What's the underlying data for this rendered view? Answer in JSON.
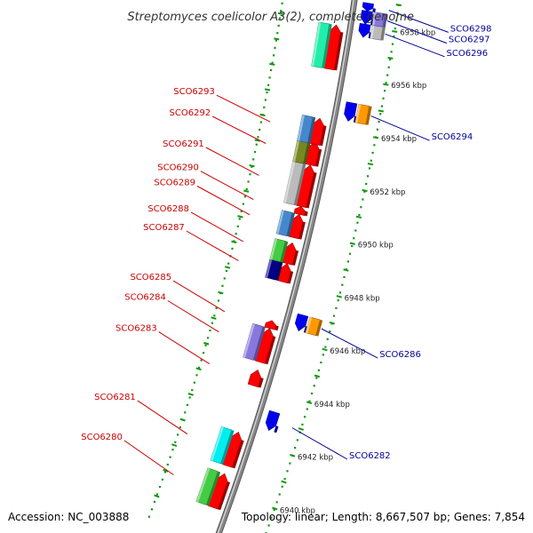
{
  "title": "Streptomyces coelicolor A3(2), complete genome",
  "footer": {
    "accession": "Accession: NC_003888",
    "summary": "Topology: linear; Length: 8,667,507 bp; Genes: 7,854"
  },
  "colors": {
    "forward_label": "#cc0000",
    "reverse_label": "#000099",
    "backbone": "#888888",
    "tick": "#119911"
  },
  "chart_data": {
    "type": "genome-map",
    "kbp_range": [
      6939.3,
      6958.9
    ],
    "kbp_labels": [
      "6940 kbp",
      "6942 kbp",
      "6944 kbp",
      "6946 kbp",
      "6948 kbp",
      "6950 kbp",
      "6952 kbp",
      "6954 kbp",
      "6956 kbp",
      "6958 kbp"
    ],
    "forward_genes": [
      {
        "label": "SCO6280",
        "kbp_start": 6939.3,
        "kbp_end": 6940.6,
        "cog_color": "#44cc44"
      },
      {
        "label": "SCO6281",
        "kbp_start": 6940.9,
        "kbp_end": 6942.2,
        "cog_color": "#00eeee"
      },
      {
        "label": "SCO6283",
        "kbp_start": 6944.0,
        "kbp_end": 6944.6,
        "cog_color": ""
      },
      {
        "label": "SCO6284",
        "kbp_start": 6944.9,
        "kbp_end": 6946.2,
        "cog_color": "#8877dd"
      },
      {
        "label": "SCO6285",
        "kbp_start": 6946.2,
        "kbp_end": 6946.5,
        "cog_color": ""
      },
      {
        "label": "SCO6287",
        "kbp_start": 6948.0,
        "kbp_end": 6948.7,
        "cog_color": "#000088"
      },
      {
        "label": "SCO6288",
        "kbp_start": 6948.7,
        "kbp_end": 6949.5,
        "cog_color": "#44cc44"
      },
      {
        "label": "SCO6289",
        "kbp_start": 6949.7,
        "kbp_end": 6950.6,
        "cog_color": "#4488cc"
      },
      {
        "label": "SCO6290",
        "kbp_start": 6950.6,
        "kbp_end": 6950.9,
        "cog_color": ""
      },
      {
        "label": "SCO6291",
        "kbp_start": 6950.9,
        "kbp_end": 6952.5,
        "cog_color": "#bbbbbb"
      },
      {
        "label": "SCO6292",
        "kbp_start": 6952.5,
        "kbp_end": 6953.4,
        "cog_color": "#778822"
      },
      {
        "label": "SCO6293",
        "kbp_start": 6953.3,
        "kbp_end": 6954.3,
        "cog_color": "#4488cc"
      },
      {
        "label": "",
        "kbp_start": 6956.2,
        "kbp_end": 6957.9,
        "cog_color": "#22eeaa"
      }
    ],
    "reverse_genes": [
      {
        "label": "SCO6282",
        "kbp_start": 6942.6,
        "kbp_end": 6943.3,
        "cog_color": ""
      },
      {
        "label": "SCO6286",
        "kbp_start": 6946.4,
        "kbp_end": 6947.0,
        "cog_color": "#ff9900"
      },
      {
        "label": "SCO6294",
        "kbp_start": 6954.4,
        "kbp_end": 6955.1,
        "cog_color": "#ff9900"
      },
      {
        "label": "SCO6296",
        "kbp_start": 6957.6,
        "kbp_end": 6958.1,
        "cog_color": "#bbbbbb"
      },
      {
        "label": "SCO6297",
        "kbp_start": 6958.1,
        "kbp_end": 6958.6,
        "cog_color": "#8877dd"
      },
      {
        "label": "SCO6298",
        "kbp_start": 6958.6,
        "kbp_end": 6958.9,
        "cog_color": ""
      }
    ]
  }
}
